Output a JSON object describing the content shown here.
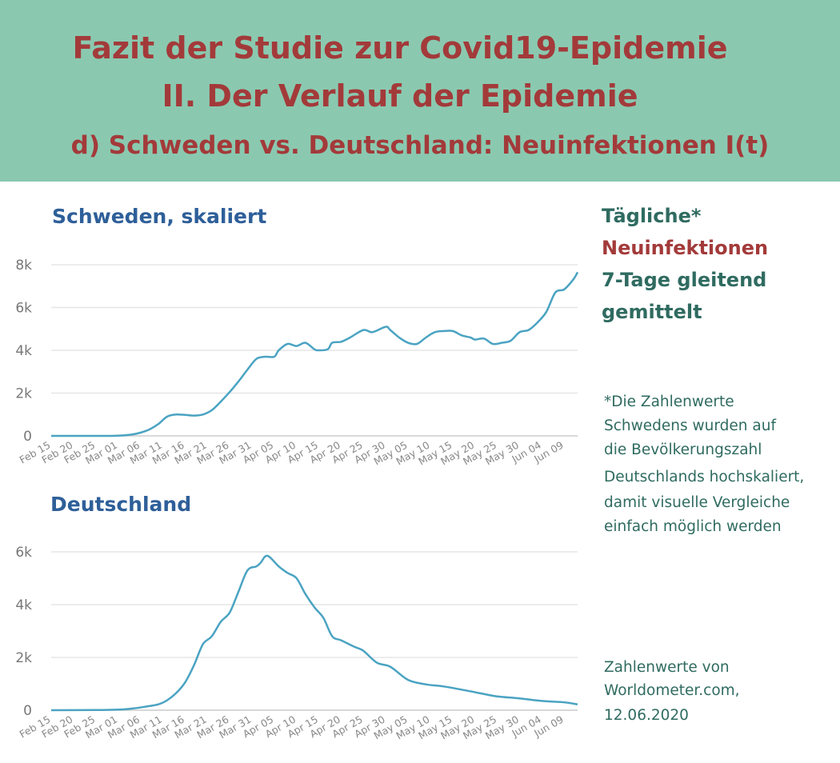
{
  "header": {
    "line1": "Fazit der Studie zur Covid19-Epidemie",
    "line2": "II. Der Verlauf der Epidemie",
    "line3": "d) Schweden vs. Deutschland: Neuinfektionen I(t)"
  },
  "legend": {
    "line1": "Tägliche*",
    "line2": "Neuinfektionen",
    "line3": "7-Tage gleitend",
    "line4": "gemittelt"
  },
  "note": {
    "lines": [
      "*Die Zahlenwerte",
      "Schwedens wurden auf",
      "die Bevölkerungszahl",
      "Deutschlands hochskaliert,",
      "damit visuelle Vergleiche",
      "einfach möglich werden"
    ]
  },
  "source": {
    "lines": [
      "Zahlenwerte von",
      "Worldometer.com,",
      "12.06.2020"
    ]
  },
  "colors": {
    "header_bg": "#8ac9b0",
    "title_red": "#a33a3a",
    "chart_title_blue": "#2e5f99",
    "legend_green": "#2f6b60",
    "line": "#4aa3c2",
    "grid": "#e6e6e6"
  },
  "chart_data": [
    {
      "type": "line",
      "title": "Schweden, skaliert",
      "x_tick_labels": [
        "Feb 15",
        "Feb 20",
        "Feb 25",
        "Mar 01",
        "Mar 06",
        "Mar 11",
        "Mar 16",
        "Mar 21",
        "Mar 26",
        "Mar 31",
        "Apr 05",
        "Apr 10",
        "Apr 15",
        "Apr 20",
        "Apr 25",
        "Apr 30",
        "May 05",
        "May 10",
        "May 15",
        "May 20",
        "May 25",
        "May 30",
        "Jun 04",
        "Jun 09"
      ],
      "y_ticks": [
        0,
        2000,
        4000,
        6000,
        8000
      ],
      "y_tick_labels": [
        "0",
        "2k",
        "4k",
        "6k",
        "8k"
      ],
      "ylim": [
        0,
        8000
      ],
      "grid": true,
      "series": [
        {
          "x": [
            "Feb 15",
            "Feb 20",
            "Feb 25",
            "Mar 01",
            "Mar 04",
            "Mar 06",
            "Mar 08",
            "Mar 10",
            "Mar 12",
            "Mar 14",
            "Mar 16",
            "Mar 18",
            "Mar 20",
            "Mar 22",
            "Mar 24",
            "Mar 26",
            "Mar 28",
            "Mar 30",
            "Apr 01",
            "Apr 03",
            "Apr 05",
            "Apr 06",
            "Apr 08",
            "Apr 10",
            "Apr 12",
            "Apr 14",
            "Apr 15",
            "Apr 17",
            "Apr 18",
            "Apr 20",
            "Apr 22",
            "Apr 25",
            "Apr 27",
            "Apr 30",
            "May 01",
            "May 03",
            "May 05",
            "May 07",
            "May 09",
            "May 11",
            "May 13",
            "May 15",
            "May 17",
            "May 19",
            "May 20",
            "May 22",
            "May 24",
            "May 26",
            "May 28",
            "May 30",
            "Jun 01",
            "Jun 03",
            "Jun 05",
            "Jun 07",
            "Jun 09",
            "Jun 11",
            "Jun 12"
          ],
          "y": [
            0,
            0,
            0,
            10,
            60,
            150,
            300,
            550,
            900,
            1000,
            980,
            950,
            1000,
            1200,
            1600,
            2050,
            2550,
            3100,
            3600,
            3700,
            3700,
            4000,
            4300,
            4200,
            4350,
            4050,
            4000,
            4050,
            4350,
            4400,
            4600,
            4950,
            4850,
            5100,
            4950,
            4600,
            4350,
            4300,
            4600,
            4850,
            4900,
            4900,
            4700,
            4600,
            4500,
            4550,
            4300,
            4350,
            4450,
            4850,
            4950,
            5300,
            5800,
            6700,
            6850,
            7300,
            7650
          ]
        }
      ]
    },
    {
      "type": "line",
      "title": "Deutschland",
      "x_tick_labels": [
        "Feb 15",
        "Feb 20",
        "Feb 25",
        "Mar 01",
        "Mar 06",
        "Mar 11",
        "Mar 16",
        "Mar 21",
        "Mar 26",
        "Mar 31",
        "Apr 05",
        "Apr 10",
        "Apr 15",
        "Apr 20",
        "Apr 25",
        "Apr 30",
        "May 05",
        "May 10",
        "May 15",
        "May 20",
        "May 25",
        "May 30",
        "Jun 04",
        "Jun 09"
      ],
      "y_ticks": [
        0,
        2000,
        4000,
        6000
      ],
      "y_tick_labels": [
        "0",
        "2k",
        "4k",
        "6k"
      ],
      "ylim": [
        0,
        6000
      ],
      "grid": true,
      "series": [
        {
          "x": [
            "Feb 15",
            "Feb 25",
            "Mar 01",
            "Mar 04",
            "Mar 07",
            "Mar 10",
            "Mar 12",
            "Mar 14",
            "Mar 16",
            "Mar 18",
            "Mar 20",
            "Mar 22",
            "Mar 24",
            "Mar 26",
            "Mar 28",
            "Mar 30",
            "Apr 01",
            "Apr 02",
            "Apr 03",
            "Apr 04",
            "Apr 06",
            "Apr 08",
            "Apr 10",
            "Apr 12",
            "Apr 14",
            "Apr 16",
            "Apr 18",
            "Apr 20",
            "Apr 23",
            "Apr 25",
            "Apr 28",
            "May 01",
            "May 05",
            "May 09",
            "May 13",
            "May 17",
            "May 21",
            "May 25",
            "May 30",
            "Jun 04",
            "Jun 09",
            "Jun 12"
          ],
          "y": [
            0,
            5,
            20,
            60,
            130,
            220,
            380,
            650,
            1050,
            1700,
            2500,
            2800,
            3350,
            3700,
            4500,
            5300,
            5450,
            5600,
            5830,
            5800,
            5450,
            5200,
            5000,
            4400,
            3900,
            3500,
            2800,
            2650,
            2400,
            2250,
            1800,
            1650,
            1150,
            980,
            900,
            780,
            650,
            520,
            450,
            350,
            300,
            220
          ]
        }
      ]
    }
  ]
}
